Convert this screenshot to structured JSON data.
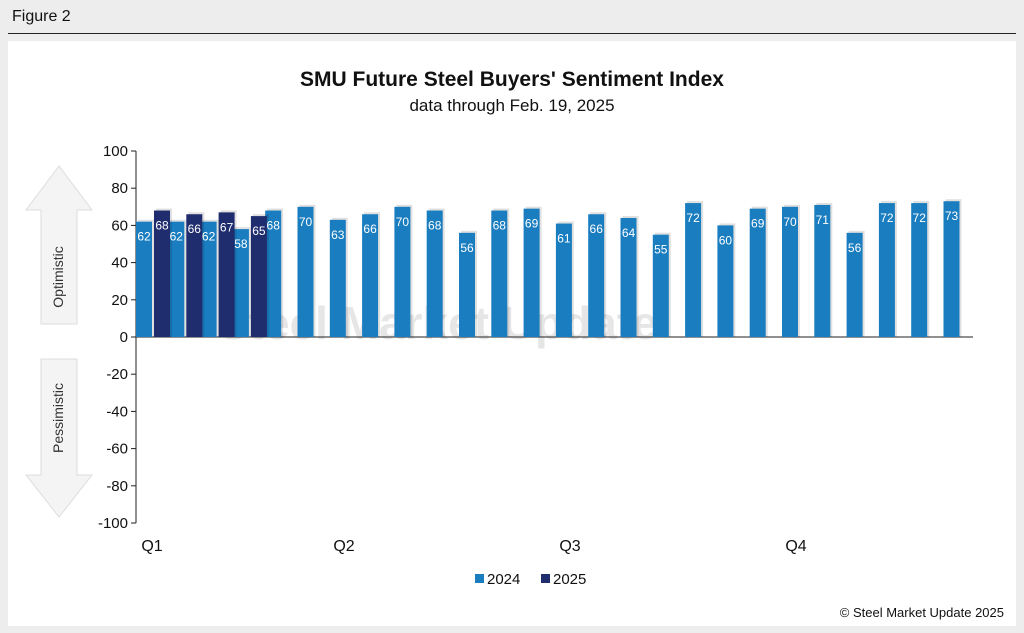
{
  "figure_label": "Figure 2",
  "copyright": "© Steel Market Update 2025",
  "watermark": "Steel Market Update",
  "arrows": {
    "up": "Optimistic",
    "down": "Pessimistic"
  },
  "colors": {
    "series_2024": "#1a7dc0",
    "series_2025": "#1f2c6e",
    "axis": "#222222"
  },
  "chart_data": {
    "type": "bar",
    "title": "SMU Future Steel Buyers' Sentiment Index",
    "subtitle": "data through Feb. 19, 2025",
    "ylim": [
      -100,
      100
    ],
    "yticks": [
      100,
      80,
      60,
      40,
      20,
      0,
      -20,
      -40,
      -60,
      -80,
      -100
    ],
    "quarter_labels": [
      "Q1",
      "Q2",
      "Q3",
      "Q4"
    ],
    "legend": [
      "2024",
      "2025"
    ],
    "legend_position": "bottom-center",
    "grid": false,
    "series": [
      {
        "name": "2024",
        "values": [
          62,
          62,
          62,
          58,
          68,
          70,
          63,
          66,
          70,
          68,
          56,
          68,
          69,
          61,
          66,
          64,
          55,
          72,
          60,
          69,
          70,
          71,
          56,
          72,
          72,
          73
        ]
      },
      {
        "name": "2025",
        "values": [
          68,
          66,
          67,
          65
        ]
      }
    ]
  }
}
